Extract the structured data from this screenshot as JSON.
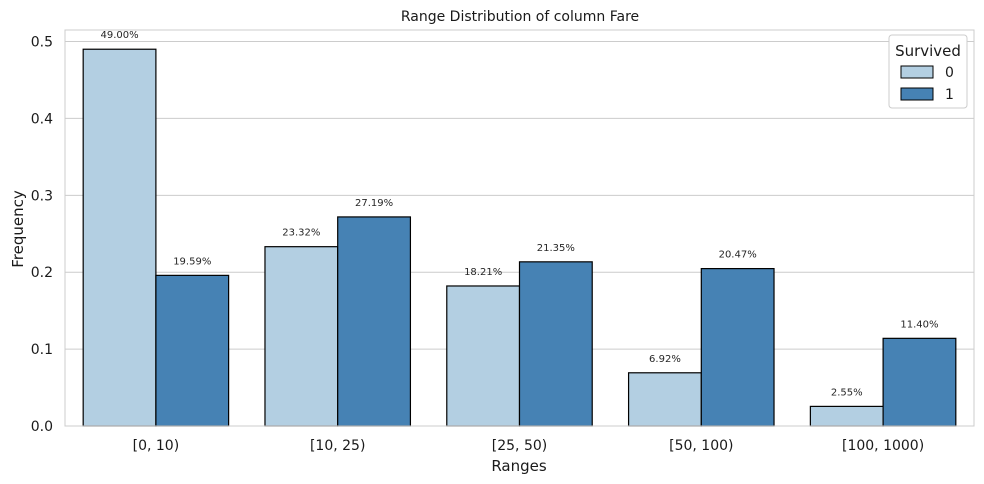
{
  "chart_data": {
    "type": "bar",
    "title": "Range Distribution of column Fare",
    "xlabel": "Ranges",
    "ylabel": "Frequency",
    "categories": [
      "[0, 10)",
      "[10, 25)",
      "[25, 50)",
      "[50, 100)",
      "[100, 1000)"
    ],
    "ylim": [
      0,
      0.515
    ],
    "yticks": [
      0.0,
      0.1,
      0.2,
      0.3,
      0.4,
      0.5
    ],
    "ytick_labels": [
      "0.0",
      "0.1",
      "0.2",
      "0.3",
      "0.4",
      "0.5"
    ],
    "grid": true,
    "legend": {
      "title": "Survived",
      "placement": "top-right"
    },
    "series": [
      {
        "name": "0",
        "color": "#b3cfe2",
        "values": [
          0.49,
          0.2332,
          0.1821,
          0.0692,
          0.0255
        ],
        "labels": [
          "49.00%",
          "23.32%",
          "18.21%",
          "6.92%",
          "2.55%"
        ]
      },
      {
        "name": "1",
        "color": "#4682b4",
        "values": [
          0.1959,
          0.2719,
          0.2135,
          0.2047,
          0.114
        ],
        "labels": [
          "19.59%",
          "27.19%",
          "21.35%",
          "20.47%",
          "11.40%"
        ]
      }
    ]
  }
}
